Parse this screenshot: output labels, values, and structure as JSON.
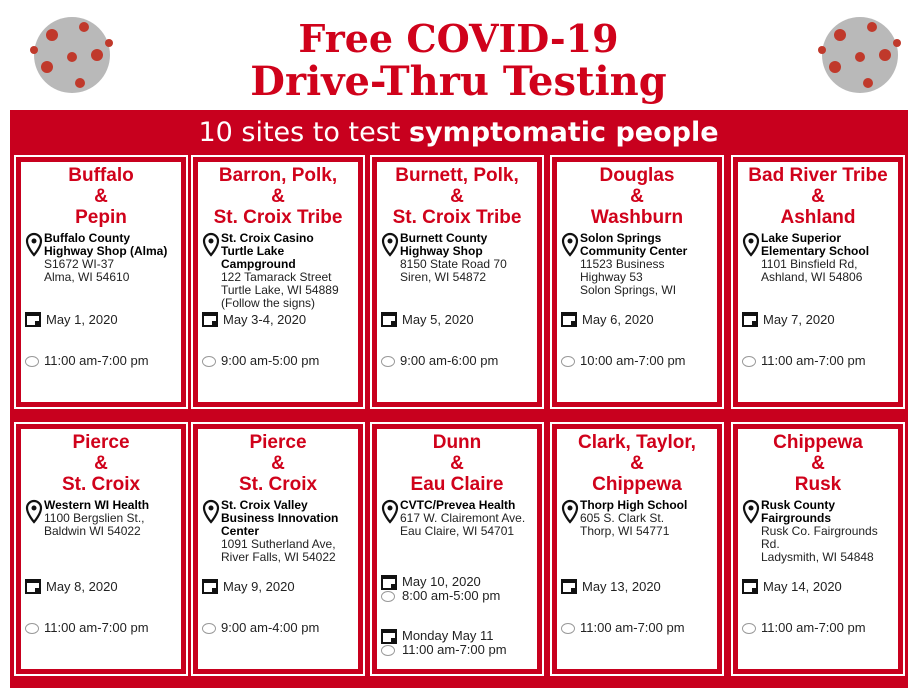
{
  "header": {
    "title_line1": "Free COVID-19",
    "title_line2": "Drive-Thru Testing",
    "subtitle_normal": "10 sites  to test ",
    "subtitle_bold": "symptomatic people"
  },
  "colors": {
    "brand_red": "#c8001e",
    "title_red": "#d0021b"
  },
  "icons": {
    "location": "map-pin-icon",
    "date": "calendar-icon",
    "time": "clock-icon"
  },
  "sites": [
    {
      "title": [
        "Buffalo",
        "&",
        "Pepin"
      ],
      "place": [
        "Buffalo County",
        "Highway Shop (Alma)"
      ],
      "address": [
        "S1672 WI-37",
        "Alma, WI 54610"
      ],
      "schedule": [
        {
          "date": "May 1, 2020",
          "time": "11:00 am-7:00 pm"
        }
      ]
    },
    {
      "title": [
        "Barron, Polk,",
        "&",
        "St. Croix Tribe"
      ],
      "place": [
        "St. Croix Casino",
        "Turtle Lake Campground"
      ],
      "address": [
        "122 Tamarack Street",
        "Turtle Lake, WI 54889",
        "(Follow the signs)"
      ],
      "schedule": [
        {
          "date": "May 3-4, 2020",
          "time": "9:00 am-5:00 pm"
        }
      ]
    },
    {
      "title": [
        "Burnett, Polk,",
        "&",
        "St. Croix Tribe"
      ],
      "place": [
        "Burnett County",
        "Highway Shop"
      ],
      "address": [
        "8150 State Road 70",
        "Siren, WI 54872"
      ],
      "schedule": [
        {
          "date": "May 5, 2020",
          "time": "9:00 am-6:00 pm"
        }
      ]
    },
    {
      "title": [
        "Douglas",
        "&",
        "Washburn"
      ],
      "place": [
        "Solon Springs",
        "Community Center"
      ],
      "address": [
        "11523 Business",
        "Highway 53",
        "Solon Springs, WI"
      ],
      "schedule": [
        {
          "date": "May 6, 2020",
          "time": "10:00 am-7:00 pm"
        }
      ]
    },
    {
      "title": [
        "Bad River  Tribe",
        "&",
        "Ashland"
      ],
      "place": [
        "Lake Superior",
        "Elementary School"
      ],
      "address": [
        "1101 Binsfield Rd,",
        "Ashland, WI 54806"
      ],
      "schedule": [
        {
          "date": "May 7, 2020",
          "time": "11:00 am-7:00 pm"
        }
      ]
    },
    {
      "title": [
        "Pierce",
        "&",
        "St. Croix"
      ],
      "place": [
        "Western WI Health"
      ],
      "address": [
        "1100  Bergslien St.,",
        "Baldwin WI 54022"
      ],
      "schedule": [
        {
          "date": "May 8, 2020",
          "time": "11:00 am-7:00 pm"
        }
      ]
    },
    {
      "title": [
        "Pierce",
        "&",
        "St. Croix"
      ],
      "place": [
        "St. Croix Valley",
        "Business Innovation",
        "Center"
      ],
      "address": [
        "1091 Sutherland Ave,",
        "River Falls, WI 54022"
      ],
      "schedule": [
        {
          "date": "May 9, 2020",
          "time": "9:00 am-4:00 pm"
        }
      ]
    },
    {
      "title": [
        "Dunn",
        "&",
        "Eau Claire"
      ],
      "place": [
        "CVTC/Prevea Health"
      ],
      "address": [
        "617 W. Clairemont Ave.",
        "Eau Claire, WI 54701"
      ],
      "schedule": [
        {
          "date": "May 10, 2020",
          "time": "8:00 am-5:00 pm"
        },
        {
          "date": "Monday May 11",
          "time": "11:00 am-7:00 pm"
        }
      ]
    },
    {
      "title": [
        "Clark, Taylor,",
        "&",
        "Chippewa"
      ],
      "place": [
        "Thorp High School"
      ],
      "address": [
        "605 S. Clark St.",
        "Thorp, WI 54771"
      ],
      "schedule": [
        {
          "date": "May 13, 2020",
          "time": "11:00 am-7:00 pm"
        }
      ]
    },
    {
      "title": [
        "Chippewa",
        "&",
        "Rusk"
      ],
      "place": [
        "Rusk County",
        "Fairgrounds"
      ],
      "address": [
        "Rusk Co. Fairgrounds Rd.",
        "Ladysmith, WI 54848"
      ],
      "schedule": [
        {
          "date": "May 14, 2020",
          "time": "11:00 am-7:00 pm"
        }
      ]
    }
  ]
}
